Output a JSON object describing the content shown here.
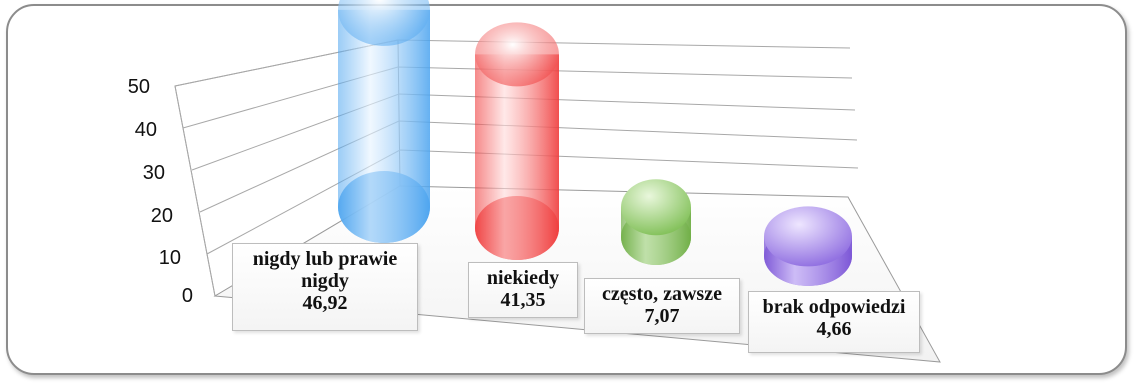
{
  "chart_data": {
    "type": "bar",
    "style": "3d-cylinder",
    "grid": true,
    "ylim": [
      0,
      50
    ],
    "yticks": [
      "0",
      "10",
      "20",
      "30",
      "40",
      "50"
    ],
    "categories": [
      "nigdy lub prawie nigdy",
      "niekiedy",
      "często, zawsze",
      "brak odpowiedzi"
    ],
    "values": [
      46.92,
      41.35,
      7.07,
      4.66
    ],
    "value_labels": [
      "46,92",
      "41,35",
      "7,07",
      "4,66"
    ],
    "colors": [
      "#4aa3ef",
      "#ef3b3b",
      "#6fae45",
      "#7b55d6"
    ],
    "label_lines": [
      [
        "nigdy lub prawie",
        "nigdy"
      ],
      [
        "niekiedy"
      ],
      [
        "często, zawsze"
      ],
      [
        "brak odpowiedzi"
      ]
    ]
  }
}
